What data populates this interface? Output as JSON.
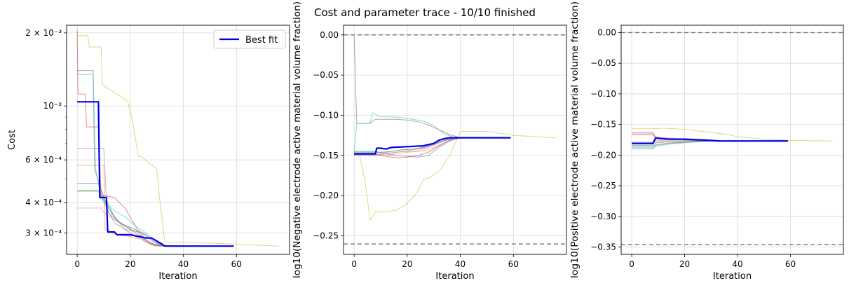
{
  "figure": {
    "title": "Cost and parameter trace - 10/10 finished"
  },
  "colors": {
    "best_fit": "#0000ee",
    "bound": "#808080",
    "grid": "#d9d9d9",
    "runs": [
      "#1f77b4",
      "#ff7f0e",
      "#2ca02c",
      "#d62728",
      "#9467bd",
      "#8c564b",
      "#e377c2",
      "#7f7f7f",
      "#bcbd22",
      "#17becf"
    ]
  },
  "chart_data": [
    {
      "type": "line",
      "xlabel": "Iteration",
      "ylabel": "Cost",
      "yscale": "log",
      "xlim": [
        -4,
        80
      ],
      "ylim": [
        0.000245,
        0.00215
      ],
      "xticks": [
        0,
        20,
        40,
        60
      ],
      "xtick_labels": [
        "0",
        "20",
        "40",
        "60"
      ],
      "yticks": [
        0.002,
        0.001,
        0.0006,
        0.0004,
        0.0003
      ],
      "ytick_labels": [
        "2 × 10⁻³",
        "10⁻³",
        "6 × 10⁻⁴",
        "4 × 10⁻⁴",
        "3 × 10⁻⁴"
      ],
      "grid": true,
      "legend": {
        "position": "top-right",
        "entries": [
          "Best fit"
        ]
      },
      "best_fit": {
        "name": "Best fit",
        "x": [
          0,
          8,
          8.5,
          11,
          11.5,
          14,
          15,
          20,
          22,
          26,
          28,
          32,
          33,
          59
        ],
        "y": [
          0.00104,
          0.00104,
          0.00042,
          0.00042,
          0.000303,
          0.000303,
          0.000295,
          0.000295,
          0.000292,
          0.000286,
          0.000286,
          0.00027,
          0.000265,
          0.000265
        ]
      },
      "runs": [
        {
          "x": [
            0,
            0.5,
            8,
            9,
            11,
            15,
            20,
            24,
            27,
            30,
            34,
            40,
            59
          ],
          "y": [
            0.00048,
            0.00048,
            0.00048,
            0.00043,
            0.00039,
            0.00034,
            0.00031,
            0.00029,
            0.000275,
            0.000268,
            0.000265,
            0.000265,
            0.000265
          ]
        },
        {
          "x": [
            0,
            0.5,
            10,
            10.5,
            13,
            15,
            20,
            24,
            27,
            30,
            33,
            40,
            59
          ],
          "y": [
            0.00057,
            0.00057,
            0.00057,
            0.00031,
            0.0003,
            0.000295,
            0.00029,
            0.000282,
            0.000272,
            0.000266,
            0.000265,
            0.000265,
            0.000265
          ]
        },
        {
          "x": [
            0,
            0.5,
            9,
            10,
            13,
            16,
            19,
            22,
            25,
            28,
            31,
            40,
            59
          ],
          "y": [
            0.00045,
            0.00045,
            0.00045,
            0.00042,
            0.00036,
            0.00033,
            0.00032,
            0.00031,
            0.0003,
            0.00028,
            0.000268,
            0.000265,
            0.000265
          ]
        },
        {
          "x": [
            0,
            0.3,
            3,
            3.5,
            8,
            9,
            14,
            18,
            22,
            25,
            28,
            34,
            59
          ],
          "y": [
            0.00205,
            0.00112,
            0.00112,
            0.00082,
            0.00082,
            0.00043,
            0.00042,
            0.00038,
            0.00032,
            0.00028,
            0.000268,
            0.000265,
            0.000265
          ]
        },
        {
          "x": [
            0,
            0.5,
            10,
            11,
            14,
            18,
            22,
            26,
            29,
            33,
            59
          ],
          "y": [
            0.00067,
            0.00067,
            0.00067,
            0.00041,
            0.00035,
            0.00031,
            0.00029,
            0.00028,
            0.00027,
            0.000265,
            0.000265
          ]
        },
        {
          "x": [
            0,
            0.3,
            6,
            6.5,
            12,
            16,
            20,
            24,
            26,
            29,
            32,
            59
          ],
          "y": [
            0.0014,
            0.0014,
            0.0014,
            0.00055,
            0.00036,
            0.00033,
            0.00031,
            0.0003,
            0.00028,
            0.000266,
            0.000265,
            0.000265
          ]
        },
        {
          "x": [
            0,
            0.5,
            9,
            10,
            14,
            18,
            22,
            26,
            30,
            34,
            59
          ],
          "y": [
            0.00038,
            0.00038,
            0.00038,
            0.000365,
            0.00034,
            0.00032,
            0.00031,
            0.00029,
            0.000272,
            0.000265,
            0.000265
          ]
        },
        {
          "x": [
            0,
            0.5,
            8,
            9,
            14,
            18,
            22,
            26,
            29,
            33,
            59
          ],
          "y": [
            0.000445,
            0.000445,
            0.000445,
            0.00042,
            0.00033,
            0.00031,
            0.000305,
            0.000295,
            0.000275,
            0.000266,
            0.000265
          ]
        },
        {
          "x": [
            0,
            0.5,
            4,
            4.5,
            9,
            9.5,
            19,
            21,
            23,
            24,
            30,
            31,
            33,
            40,
            60,
            76
          ],
          "y": [
            0.00195,
            0.00195,
            0.00195,
            0.00175,
            0.00175,
            0.00122,
            0.00105,
            0.00085,
            0.00062,
            0.00062,
            0.00055,
            0.00042,
            0.000275,
            0.000275,
            0.00027,
            0.000265
          ]
        },
        {
          "x": [
            0,
            0.3,
            6,
            7,
            9,
            14,
            18,
            22,
            26,
            30,
            33,
            59
          ],
          "y": [
            0.00135,
            0.00135,
            0.00135,
            0.00055,
            0.00042,
            0.00037,
            0.00035,
            0.00032,
            0.0003,
            0.000275,
            0.000265,
            0.000265
          ]
        }
      ]
    },
    {
      "type": "line",
      "xlabel": "Iteration",
      "ylabel": "log10(Negative electrode active material volume fraction)",
      "xlim": [
        -4,
        80
      ],
      "ylim": [
        -0.273,
        0.012
      ],
      "xticks": [
        0,
        20,
        40,
        60
      ],
      "xtick_labels": [
        "0",
        "20",
        "40",
        "60"
      ],
      "yticks": [
        0.0,
        -0.05,
        -0.1,
        -0.15,
        -0.2,
        -0.25
      ],
      "ytick_labels": [
        "0.00",
        "−0.05",
        "−0.10",
        "−0.15",
        "−0.20",
        "−0.25"
      ],
      "bounds": [
        0.0,
        -0.26
      ],
      "grid": true,
      "best_fit": {
        "name": "Best fit",
        "x": [
          0,
          8,
          8.5,
          10,
          12,
          14,
          20,
          26,
          30,
          32,
          34,
          36,
          40,
          59
        ],
        "y": [
          -0.148,
          -0.148,
          -0.141,
          -0.141,
          -0.142,
          -0.14,
          -0.139,
          -0.138,
          -0.135,
          -0.131,
          -0.129,
          -0.128,
          -0.128,
          -0.128
        ]
      },
      "runs": [
        {
          "x": [
            0,
            4,
            8,
            12,
            16,
            20,
            24,
            28,
            32,
            36,
            40,
            59
          ],
          "y": [
            -0.145,
            -0.145,
            -0.145,
            -0.148,
            -0.15,
            -0.151,
            -0.152,
            -0.15,
            -0.14,
            -0.132,
            -0.128,
            -0.128
          ]
        },
        {
          "x": [
            0,
            4,
            8,
            12,
            16,
            20,
            24,
            28,
            32,
            36,
            40,
            59
          ],
          "y": [
            -0.15,
            -0.15,
            -0.15,
            -0.15,
            -0.148,
            -0.146,
            -0.145,
            -0.143,
            -0.137,
            -0.131,
            -0.128,
            -0.128
          ]
        },
        {
          "x": [
            0,
            6,
            10,
            14,
            18,
            22,
            26,
            30,
            34,
            38,
            59
          ],
          "y": [
            -0.146,
            -0.146,
            -0.146,
            -0.145,
            -0.143,
            -0.142,
            -0.14,
            -0.136,
            -0.131,
            -0.128,
            -0.128
          ]
        },
        {
          "x": [
            0,
            4,
            8,
            12,
            16,
            20,
            24,
            28,
            32,
            36,
            40,
            59
          ],
          "y": [
            -0.148,
            -0.148,
            -0.148,
            -0.151,
            -0.153,
            -0.152,
            -0.15,
            -0.146,
            -0.138,
            -0.131,
            -0.128,
            -0.128
          ]
        },
        {
          "x": [
            0,
            6,
            10,
            14,
            18,
            22,
            26,
            30,
            34,
            38,
            59
          ],
          "y": [
            -0.149,
            -0.149,
            -0.149,
            -0.147,
            -0.145,
            -0.143,
            -0.141,
            -0.137,
            -0.132,
            -0.128,
            -0.128
          ]
        },
        {
          "x": [
            0,
            1,
            2,
            6,
            8,
            12,
            16,
            20,
            24,
            28,
            32,
            36,
            40,
            59
          ],
          "y": [
            0.0,
            -0.11,
            -0.11,
            -0.11,
            -0.105,
            -0.105,
            -0.105,
            -0.106,
            -0.108,
            -0.112,
            -0.118,
            -0.124,
            -0.128,
            -0.128
          ]
        },
        {
          "x": [
            0,
            4,
            8,
            12,
            16,
            20,
            24,
            28,
            32,
            36,
            40,
            59
          ],
          "y": [
            -0.15,
            -0.15,
            -0.15,
            -0.147,
            -0.146,
            -0.145,
            -0.144,
            -0.14,
            -0.133,
            -0.129,
            -0.128,
            -0.128
          ]
        },
        {
          "x": [
            0,
            6,
            10,
            14,
            18,
            22,
            26,
            30,
            34,
            38,
            59
          ],
          "y": [
            -0.147,
            -0.147,
            -0.147,
            -0.145,
            -0.143,
            -0.142,
            -0.14,
            -0.136,
            -0.131,
            -0.128,
            -0.128
          ]
        },
        {
          "x": [
            0,
            2,
            4,
            6,
            8,
            12,
            16,
            20,
            24,
            26,
            28,
            32,
            36,
            40,
            50,
            60,
            76
          ],
          "y": [
            -0.148,
            -0.148,
            -0.18,
            -0.23,
            -0.22,
            -0.22,
            -0.218,
            -0.21,
            -0.195,
            -0.18,
            -0.178,
            -0.17,
            -0.15,
            -0.12,
            -0.12,
            -0.125,
            -0.128
          ]
        },
        {
          "x": [
            0,
            1,
            4,
            6,
            7,
            10,
            14,
            18,
            22,
            26,
            30,
            34,
            38,
            59
          ],
          "y": [
            -0.147,
            -0.11,
            -0.11,
            -0.11,
            -0.097,
            -0.102,
            -0.102,
            -0.103,
            -0.105,
            -0.107,
            -0.113,
            -0.123,
            -0.128,
            -0.128
          ]
        }
      ]
    },
    {
      "type": "line",
      "xlabel": "Iteration",
      "ylabel": "log10(Positive electrode active material volume fraction)",
      "xlim": [
        -4,
        80
      ],
      "ylim": [
        -0.362,
        0.012
      ],
      "xticks": [
        0,
        20,
        40,
        60
      ],
      "xtick_labels": [
        "0",
        "20",
        "40",
        "60"
      ],
      "yticks": [
        0.0,
        -0.05,
        -0.1,
        -0.15,
        -0.2,
        -0.25,
        -0.3,
        -0.35
      ],
      "ytick_labels": [
        "0.00",
        "−0.05",
        "−0.10",
        "−0.15",
        "−0.20",
        "−0.25",
        "−0.30",
        "−0.35"
      ],
      "bounds": [
        0.0,
        -0.346
      ],
      "grid": true,
      "best_fit": {
        "name": "Best fit",
        "x": [
          0,
          8,
          9,
          11,
          14,
          20,
          25,
          30,
          33,
          40,
          59
        ],
        "y": [
          -0.181,
          -0.181,
          -0.172,
          -0.173,
          -0.174,
          -0.174,
          -0.175,
          -0.176,
          -0.177,
          -0.177,
          -0.177
        ]
      },
      "runs": [
        {
          "x": [
            0,
            8,
            9,
            14,
            20,
            26,
            32,
            59
          ],
          "y": [
            -0.184,
            -0.184,
            -0.18,
            -0.178,
            -0.177,
            -0.177,
            -0.177,
            -0.177
          ]
        },
        {
          "x": [
            0,
            8,
            9,
            14,
            20,
            26,
            32,
            59
          ],
          "y": [
            -0.182,
            -0.182,
            -0.176,
            -0.176,
            -0.176,
            -0.177,
            -0.177,
            -0.177
          ]
        },
        {
          "x": [
            0,
            8,
            9,
            14,
            20,
            26,
            32,
            59
          ],
          "y": [
            -0.186,
            -0.186,
            -0.184,
            -0.181,
            -0.179,
            -0.178,
            -0.177,
            -0.177
          ]
        },
        {
          "x": [
            0,
            8,
            9,
            14,
            20,
            26,
            32,
            59
          ],
          "y": [
            -0.163,
            -0.163,
            -0.171,
            -0.173,
            -0.175,
            -0.176,
            -0.177,
            -0.177
          ]
        },
        {
          "x": [
            0,
            8,
            9,
            14,
            20,
            26,
            32,
            59
          ],
          "y": [
            -0.179,
            -0.179,
            -0.178,
            -0.178,
            -0.177,
            -0.177,
            -0.177,
            -0.177
          ]
        },
        {
          "x": [
            0,
            8,
            9,
            14,
            20,
            26,
            32,
            59
          ],
          "y": [
            -0.167,
            -0.167,
            -0.172,
            -0.174,
            -0.175,
            -0.176,
            -0.177,
            -0.177
          ]
        },
        {
          "x": [
            0,
            8,
            9,
            14,
            20,
            26,
            32,
            59
          ],
          "y": [
            -0.165,
            -0.165,
            -0.17,
            -0.172,
            -0.174,
            -0.176,
            -0.177,
            -0.177
          ]
        },
        {
          "x": [
            0,
            8,
            9,
            14,
            20,
            26,
            32,
            59
          ],
          "y": [
            -0.188,
            -0.188,
            -0.183,
            -0.18,
            -0.179,
            -0.178,
            -0.177,
            -0.177
          ]
        },
        {
          "x": [
            0,
            8,
            12,
            20,
            24,
            30,
            36,
            40,
            50,
            60,
            76
          ],
          "y": [
            -0.157,
            -0.157,
            -0.156,
            -0.158,
            -0.16,
            -0.163,
            -0.166,
            -0.17,
            -0.174,
            -0.176,
            -0.177
          ]
        },
        {
          "x": [
            0,
            8,
            9,
            14,
            20,
            26,
            32,
            59
          ],
          "y": [
            -0.19,
            -0.19,
            -0.186,
            -0.182,
            -0.18,
            -0.178,
            -0.177,
            -0.177
          ]
        }
      ]
    }
  ]
}
